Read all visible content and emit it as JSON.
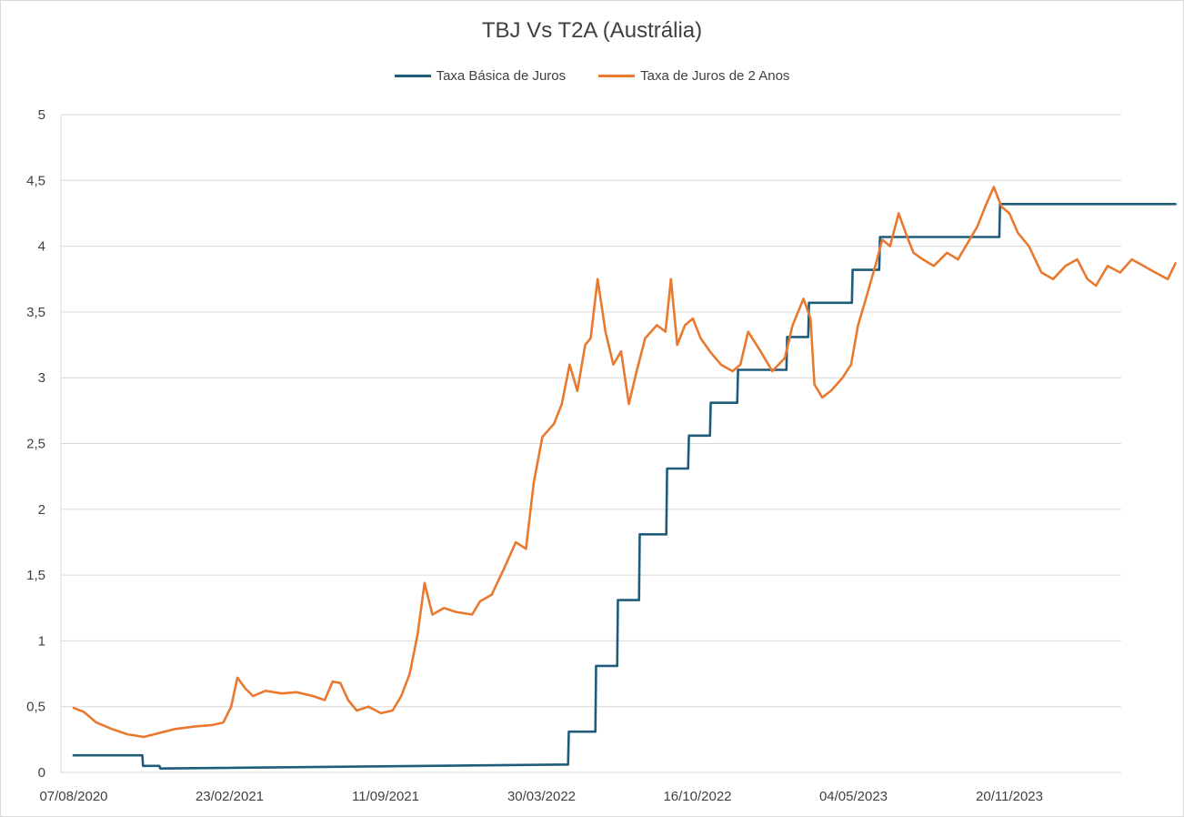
{
  "chart_data": {
    "type": "line",
    "title": "TBJ Vs T2A (Austrália)",
    "xlabel": "",
    "ylabel": "",
    "ylim": [
      0,
      5
    ],
    "y_ticks": [
      "0",
      "0,5",
      "1",
      "1,5",
      "2",
      "2,5",
      "3",
      "3,5",
      "4",
      "4,5",
      "5"
    ],
    "x_ticks": [
      "07/08/2020",
      "23/02/2021",
      "11/09/2021",
      "30/03/2022",
      "16/10/2022",
      "04/05/2023",
      "20/11/2023"
    ],
    "x_tick_dates": [
      "2020-08-07",
      "2021-02-23",
      "2021-09-11",
      "2022-03-30",
      "2022-10-16",
      "2023-05-04",
      "2023-11-20"
    ],
    "grid": true,
    "legend_position": "top",
    "series": [
      {
        "name": "Taxa Básica de Juros",
        "color": "#1f5c7a",
        "style": "step",
        "points": [
          [
            "2020-08-07",
            0.13
          ],
          [
            "2020-11-03",
            0.13
          ],
          [
            "2020-11-04",
            0.05
          ],
          [
            "2020-11-25",
            0.05
          ],
          [
            "2020-11-26",
            0.03
          ],
          [
            "2022-05-03",
            0.06
          ],
          [
            "2022-05-04",
            0.31
          ],
          [
            "2022-06-07",
            0.31
          ],
          [
            "2022-06-08",
            0.81
          ],
          [
            "2022-07-05",
            0.81
          ],
          [
            "2022-07-06",
            1.31
          ],
          [
            "2022-08-02",
            1.31
          ],
          [
            "2022-08-03",
            1.81
          ],
          [
            "2022-09-06",
            1.81
          ],
          [
            "2022-09-07",
            2.31
          ],
          [
            "2022-10-04",
            2.31
          ],
          [
            "2022-10-05",
            2.56
          ],
          [
            "2022-11-01",
            2.56
          ],
          [
            "2022-11-02",
            2.81
          ],
          [
            "2022-12-06",
            2.81
          ],
          [
            "2022-12-07",
            3.06
          ],
          [
            "2023-02-07",
            3.06
          ],
          [
            "2023-02-08",
            3.31
          ],
          [
            "2023-03-07",
            3.31
          ],
          [
            "2023-03-08",
            3.57
          ],
          [
            "2023-05-02",
            3.57
          ],
          [
            "2023-05-03",
            3.82
          ],
          [
            "2023-06-06",
            3.82
          ],
          [
            "2023-06-07",
            4.07
          ],
          [
            "2023-11-07",
            4.07
          ],
          [
            "2023-11-08",
            4.32
          ],
          [
            "2024-06-20",
            4.32
          ]
        ]
      },
      {
        "name": "Taxa de Juros de 2 Anos",
        "color": "#e8792f",
        "style": "line",
        "points": [
          [
            "2020-08-07",
            0.49
          ],
          [
            "2020-08-20",
            0.46
          ],
          [
            "2020-09-05",
            0.38
          ],
          [
            "2020-09-25",
            0.33
          ],
          [
            "2020-10-15",
            0.29
          ],
          [
            "2020-11-05",
            0.27
          ],
          [
            "2020-11-25",
            0.3
          ],
          [
            "2020-12-15",
            0.33
          ],
          [
            "2021-01-10",
            0.35
          ],
          [
            "2021-02-01",
            0.36
          ],
          [
            "2021-02-15",
            0.38
          ],
          [
            "2021-02-25",
            0.5
          ],
          [
            "2021-03-05",
            0.72
          ],
          [
            "2021-03-15",
            0.64
          ],
          [
            "2021-03-25",
            0.58
          ],
          [
            "2021-04-10",
            0.62
          ],
          [
            "2021-05-01",
            0.6
          ],
          [
            "2021-05-20",
            0.61
          ],
          [
            "2021-06-10",
            0.58
          ],
          [
            "2021-06-25",
            0.55
          ],
          [
            "2021-07-05",
            0.69
          ],
          [
            "2021-07-15",
            0.68
          ],
          [
            "2021-07-25",
            0.55
          ],
          [
            "2021-08-05",
            0.47
          ],
          [
            "2021-08-20",
            0.5
          ],
          [
            "2021-09-05",
            0.45
          ],
          [
            "2021-09-20",
            0.47
          ],
          [
            "2021-10-01",
            0.58
          ],
          [
            "2021-10-12",
            0.75
          ],
          [
            "2021-10-22",
            1.05
          ],
          [
            "2021-10-31",
            1.44
          ],
          [
            "2021-11-10",
            1.2
          ],
          [
            "2021-11-25",
            1.25
          ],
          [
            "2021-12-10",
            1.22
          ],
          [
            "2021-12-31",
            1.2
          ],
          [
            "2022-01-10",
            1.3
          ],
          [
            "2022-01-25",
            1.35
          ],
          [
            "2022-02-10",
            1.55
          ],
          [
            "2022-02-25",
            1.75
          ],
          [
            "2022-03-10",
            1.7
          ],
          [
            "2022-03-20",
            2.2
          ],
          [
            "2022-03-31",
            2.55
          ],
          [
            "2022-04-15",
            2.65
          ],
          [
            "2022-04-25",
            2.8
          ],
          [
            "2022-05-05",
            3.1
          ],
          [
            "2022-05-15",
            2.9
          ],
          [
            "2022-05-25",
            3.25
          ],
          [
            "2022-06-01",
            3.3
          ],
          [
            "2022-06-10",
            3.75
          ],
          [
            "2022-06-20",
            3.35
          ],
          [
            "2022-06-30",
            3.1
          ],
          [
            "2022-07-10",
            3.2
          ],
          [
            "2022-07-20",
            2.8
          ],
          [
            "2022-07-30",
            3.05
          ],
          [
            "2022-08-10",
            3.3
          ],
          [
            "2022-08-25",
            3.4
          ],
          [
            "2022-09-05",
            3.35
          ],
          [
            "2022-09-12",
            3.75
          ],
          [
            "2022-09-20",
            3.25
          ],
          [
            "2022-09-30",
            3.4
          ],
          [
            "2022-10-10",
            3.45
          ],
          [
            "2022-10-20",
            3.3
          ],
          [
            "2022-11-01",
            3.2
          ],
          [
            "2022-11-15",
            3.1
          ],
          [
            "2022-11-30",
            3.05
          ],
          [
            "2022-12-10",
            3.1
          ],
          [
            "2022-12-20",
            3.35
          ],
          [
            "2023-01-05",
            3.2
          ],
          [
            "2023-01-20",
            3.05
          ],
          [
            "2023-02-05",
            3.15
          ],
          [
            "2023-02-15",
            3.4
          ],
          [
            "2023-03-01",
            3.6
          ],
          [
            "2023-03-10",
            3.45
          ],
          [
            "2023-03-15",
            2.95
          ],
          [
            "2023-03-25",
            2.85
          ],
          [
            "2023-04-05",
            2.9
          ],
          [
            "2023-04-20",
            3.0
          ],
          [
            "2023-05-01",
            3.1
          ],
          [
            "2023-05-10",
            3.4
          ],
          [
            "2023-05-20",
            3.6
          ],
          [
            "2023-06-01",
            3.85
          ],
          [
            "2023-06-10",
            4.05
          ],
          [
            "2023-06-20",
            4.0
          ],
          [
            "2023-07-01",
            4.25
          ],
          [
            "2023-07-10",
            4.1
          ],
          [
            "2023-07-20",
            3.95
          ],
          [
            "2023-08-01",
            3.9
          ],
          [
            "2023-08-15",
            3.85
          ],
          [
            "2023-09-01",
            3.95
          ],
          [
            "2023-09-15",
            3.9
          ],
          [
            "2023-09-30",
            4.05
          ],
          [
            "2023-10-10",
            4.15
          ],
          [
            "2023-10-20",
            4.3
          ],
          [
            "2023-10-31",
            4.45
          ],
          [
            "2023-11-10",
            4.3
          ],
          [
            "2023-11-20",
            4.25
          ],
          [
            "2023-12-01",
            4.1
          ],
          [
            "2023-12-15",
            4.0
          ],
          [
            "2023-12-31",
            3.8
          ],
          [
            "2024-01-15",
            3.75
          ],
          [
            "2024-01-31",
            3.85
          ],
          [
            "2024-02-15",
            3.9
          ],
          [
            "2024-02-28",
            3.75
          ],
          [
            "2024-03-10",
            3.7
          ],
          [
            "2024-03-25",
            3.85
          ],
          [
            "2024-04-10",
            3.8
          ],
          [
            "2024-04-25",
            3.9
          ],
          [
            "2024-05-10",
            3.85
          ],
          [
            "2024-05-25",
            3.8
          ],
          [
            "2024-06-10",
            3.75
          ],
          [
            "2024-06-20",
            3.87
          ]
        ]
      }
    ]
  }
}
